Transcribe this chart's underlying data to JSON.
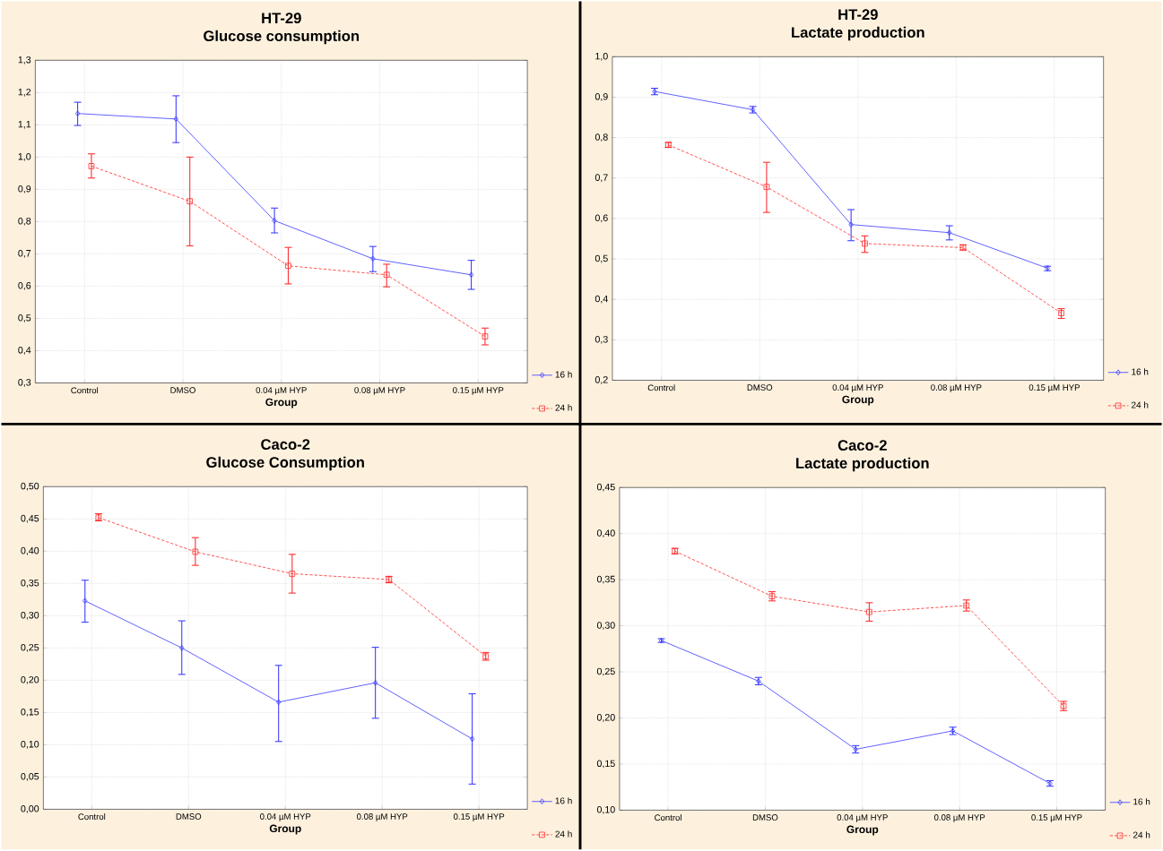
{
  "chart_data": [
    {
      "type": "line",
      "title": "HT-29",
      "subtitle": "Glucose consumption",
      "xlabel": "Group",
      "categories": [
        "Control",
        "DMSO",
        "0.04 µM HYP",
        "0.08 µM HYP",
        "0.15 µM HYP"
      ],
      "ylim": [
        0.3,
        1.3
      ],
      "yticks": [
        {
          "value": 0.3,
          "label": "0,3"
        },
        {
          "value": 0.4,
          "label": "0,4"
        },
        {
          "value": 0.5,
          "label": "0,5"
        },
        {
          "value": 0.6,
          "label": "0,6"
        },
        {
          "value": 0.7,
          "label": "0,7"
        },
        {
          "value": 0.8,
          "label": "0,8"
        },
        {
          "value": 0.9,
          "label": "0,9"
        },
        {
          "value": 1.0,
          "label": "1,0"
        },
        {
          "value": 1.1,
          "label": "1,1"
        },
        {
          "value": 1.2,
          "label": "1,2"
        },
        {
          "value": 1.3,
          "label": "1,3"
        }
      ],
      "grid": true,
      "legend": "bottom right",
      "series": [
        {
          "name": "16 h",
          "color": "#3a3aff",
          "marker": "diamond",
          "line_style": "solid",
          "values": [
            1.135,
            1.118,
            0.803,
            0.685,
            0.635
          ],
          "errors": [
            [
              1.098,
              1.17
            ],
            [
              1.045,
              1.19
            ],
            [
              0.765,
              0.842
            ],
            [
              0.645,
              0.723
            ],
            [
              0.59,
              0.68
            ]
          ]
        },
        {
          "name": "24 h",
          "color": "#ff2a2a",
          "marker": "square",
          "line_style": "dashed",
          "values": [
            0.972,
            0.863,
            0.663,
            0.635,
            0.444
          ],
          "errors": [
            [
              0.935,
              1.01
            ],
            [
              0.725,
              1.0
            ],
            [
              0.607,
              0.72
            ],
            [
              0.598,
              0.668
            ],
            [
              0.418,
              0.47
            ]
          ]
        }
      ]
    },
    {
      "type": "line",
      "title": "HT-29",
      "subtitle": "Lactate production",
      "xlabel": "Group",
      "categories": [
        "Control",
        "DMSO",
        "0.04 µM HYP",
        "0.08 µM HYP",
        "0.15 µM HYP"
      ],
      "ylim": [
        0.2,
        1.0
      ],
      "yticks": [
        {
          "value": 0.2,
          "label": "0,2"
        },
        {
          "value": 0.3,
          "label": "0,3"
        },
        {
          "value": 0.4,
          "label": "0,4"
        },
        {
          "value": 0.5,
          "label": "0,5"
        },
        {
          "value": 0.6,
          "label": "0,6"
        },
        {
          "value": 0.7,
          "label": "0,7"
        },
        {
          "value": 0.8,
          "label": "0,8"
        },
        {
          "value": 0.9,
          "label": "0,9"
        },
        {
          "value": 1.0,
          "label": "1,0"
        }
      ],
      "grid": true,
      "legend": "bottom right",
      "series": [
        {
          "name": "16 h",
          "color": "#3a3aff",
          "marker": "diamond",
          "line_style": "solid",
          "values": [
            0.914,
            0.869,
            0.585,
            0.565,
            0.477
          ],
          "errors": [
            [
              0.906,
              0.922
            ],
            [
              0.861,
              0.877
            ],
            [
              0.545,
              0.622
            ],
            [
              0.547,
              0.582
            ],
            [
              0.471,
              0.482
            ]
          ]
        },
        {
          "name": "24 h",
          "color": "#ff2a2a",
          "marker": "square",
          "line_style": "dashed",
          "values": [
            0.782,
            0.678,
            0.538,
            0.528,
            0.366
          ],
          "errors": [
            [
              0.776,
              0.788
            ],
            [
              0.615,
              0.739
            ],
            [
              0.516,
              0.557
            ],
            [
              0.522,
              0.535
            ],
            [
              0.353,
              0.377
            ]
          ]
        }
      ]
    },
    {
      "type": "line",
      "title": "Caco-2",
      "subtitle": "Glucose Consumption",
      "xlabel": "Group",
      "categories": [
        "Control",
        "DMSO",
        "0.04 µM HYP",
        "0.08 µM HYP",
        "0.15 µM HYP"
      ],
      "ylim": [
        0.0,
        0.5
      ],
      "yticks": [
        {
          "value": 0.0,
          "label": "0,00"
        },
        {
          "value": 0.05,
          "label": "0,05"
        },
        {
          "value": 0.1,
          "label": "0,10"
        },
        {
          "value": 0.15,
          "label": "0,15"
        },
        {
          "value": 0.2,
          "label": "0,20"
        },
        {
          "value": 0.25,
          "label": "0,25"
        },
        {
          "value": 0.3,
          "label": "0,30"
        },
        {
          "value": 0.35,
          "label": "0,35"
        },
        {
          "value": 0.4,
          "label": "0,40"
        },
        {
          "value": 0.45,
          "label": "0,45"
        },
        {
          "value": 0.5,
          "label": "0,50"
        }
      ],
      "grid": true,
      "legend": "bottom right",
      "series": [
        {
          "name": "16 h",
          "color": "#3a3aff",
          "marker": "diamond",
          "line_style": "solid",
          "values": [
            0.323,
            0.25,
            0.166,
            0.196,
            0.109
          ],
          "errors": [
            [
              0.29,
              0.355
            ],
            [
              0.209,
              0.292
            ],
            [
              0.105,
              0.223
            ],
            [
              0.141,
              0.251
            ],
            [
              0.039,
              0.179
            ]
          ]
        },
        {
          "name": "24 h",
          "color": "#ff2a2a",
          "marker": "square",
          "line_style": "dashed",
          "values": [
            0.452,
            0.399,
            0.365,
            0.356,
            0.237
          ],
          "errors": [
            [
              0.447,
              0.458
            ],
            [
              0.378,
              0.421
            ],
            [
              0.335,
              0.395
            ],
            [
              0.351,
              0.361
            ],
            [
              0.231,
              0.243
            ]
          ]
        }
      ]
    },
    {
      "type": "line",
      "title": "Caco-2",
      "subtitle": "Lactate production",
      "xlabel": "Group",
      "categories": [
        "Control",
        "DMSO",
        "0.04 µM HYP",
        "0.08 µM HYP",
        "0.15 µM HYP"
      ],
      "ylim": [
        0.1,
        0.45
      ],
      "yticks": [
        {
          "value": 0.1,
          "label": "0,10"
        },
        {
          "value": 0.15,
          "label": "0,15"
        },
        {
          "value": 0.2,
          "label": "0,20"
        },
        {
          "value": 0.25,
          "label": "0,25"
        },
        {
          "value": 0.3,
          "label": "0,30"
        },
        {
          "value": 0.35,
          "label": "0,35"
        },
        {
          "value": 0.4,
          "label": "0,40"
        },
        {
          "value": 0.45,
          "label": "0,45"
        }
      ],
      "grid": true,
      "legend": "bottom right",
      "series": [
        {
          "name": "16 h",
          "color": "#3a3aff",
          "marker": "diamond",
          "line_style": "solid",
          "values": [
            0.284,
            0.24,
            0.166,
            0.186,
            0.129
          ],
          "errors": [
            [
              0.282,
              0.286
            ],
            [
              0.236,
              0.244
            ],
            [
              0.162,
              0.17
            ],
            [
              0.182,
              0.19
            ],
            [
              0.126,
              0.132
            ]
          ]
        },
        {
          "name": "24 h",
          "color": "#ff2a2a",
          "marker": "square",
          "line_style": "dashed",
          "values": [
            0.381,
            0.332,
            0.315,
            0.322,
            0.213
          ],
          "errors": [
            [
              0.378,
              0.384
            ],
            [
              0.327,
              0.337
            ],
            [
              0.305,
              0.325
            ],
            [
              0.316,
              0.328
            ],
            [
              0.208,
              0.218
            ]
          ]
        }
      ]
    }
  ]
}
